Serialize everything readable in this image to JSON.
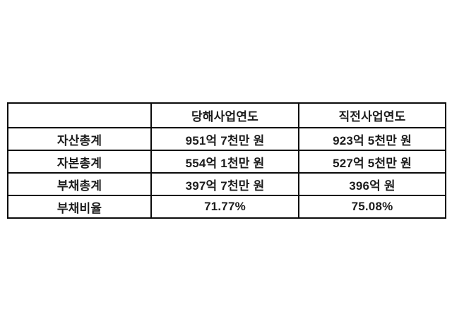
{
  "table": {
    "columns": {
      "label": "",
      "current": "당해사업연도",
      "previous": "직전사업연도"
    },
    "rows": [
      {
        "label": "자산총계",
        "current": "951억 7천만 원",
        "previous": "923억 5천만 원"
      },
      {
        "label": "자본총계",
        "current": "554억 1천만 원",
        "previous": "527억 5천만 원"
      },
      {
        "label": "부채총계",
        "current": "397억 7천만 원",
        "previous": "396억 원"
      },
      {
        "label": "부채비율",
        "current": "71.77%",
        "previous": "75.08%"
      }
    ]
  },
  "colors": {
    "border": "#0a0a0a",
    "text": "#1c1c1c",
    "background": "#ffffff"
  }
}
